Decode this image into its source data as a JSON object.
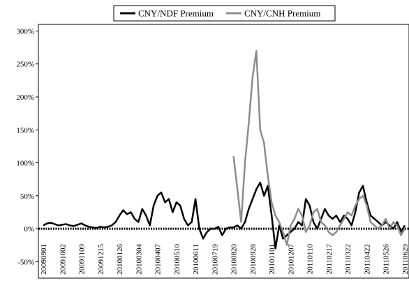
{
  "chart_data": {
    "type": "line",
    "categories": [
      "20090901",
      null,
      null,
      null,
      null,
      "20091002",
      null,
      null,
      null,
      null,
      "20091109",
      null,
      null,
      null,
      null,
      "20091215",
      null,
      null,
      null,
      null,
      "20100126",
      null,
      null,
      null,
      null,
      "20100304",
      null,
      null,
      null,
      null,
      "20100407",
      null,
      null,
      null,
      null,
      "20100510",
      null,
      null,
      null,
      null,
      "20100611",
      null,
      null,
      null,
      null,
      "20100719",
      null,
      null,
      null,
      null,
      "20100820",
      null,
      null,
      null,
      null,
      "20100928",
      null,
      null,
      null,
      null,
      "20101101",
      null,
      null,
      null,
      null,
      "20101207",
      null,
      null,
      null,
      null,
      "20110110",
      null,
      null,
      null,
      null,
      "20110217",
      null,
      null,
      null,
      null,
      "20110322",
      null,
      null,
      null,
      null,
      "20110422",
      null,
      null,
      null,
      null,
      "20110526",
      null,
      null,
      null,
      null,
      "20110629"
    ],
    "series": [
      {
        "name": "CNY/NDF Premium",
        "color": "#000000",
        "values": [
          5,
          8,
          9,
          7,
          5,
          6,
          7,
          5,
          4,
          6,
          8,
          5,
          3,
          2,
          1,
          3,
          2,
          3,
          5,
          10,
          20,
          28,
          22,
          25,
          15,
          10,
          30,
          20,
          5,
          35,
          50,
          55,
          40,
          45,
          25,
          40,
          35,
          15,
          5,
          10,
          45,
          0,
          -15,
          -5,
          0,
          0,
          3,
          -10,
          0,
          2,
          2,
          5,
          0,
          10,
          30,
          45,
          60,
          70,
          50,
          65,
          20,
          -30,
          5,
          -15,
          -10,
          -5,
          0,
          10,
          5,
          45,
          35,
          10,
          0,
          15,
          30,
          20,
          15,
          20,
          10,
          20,
          15,
          5,
          25,
          55,
          65,
          40,
          20,
          15,
          10,
          5,
          10,
          5,
          0,
          10,
          -5,
          5
        ]
      },
      {
        "name": "CNY/CNH Premium",
        "color": "#8c8c8c",
        "values": [
          null,
          null,
          null,
          null,
          null,
          null,
          null,
          null,
          null,
          null,
          null,
          null,
          null,
          null,
          null,
          null,
          null,
          null,
          null,
          null,
          null,
          null,
          null,
          null,
          null,
          null,
          null,
          null,
          null,
          null,
          null,
          null,
          null,
          null,
          null,
          null,
          null,
          null,
          null,
          null,
          null,
          null,
          null,
          null,
          null,
          null,
          null,
          null,
          null,
          null,
          110,
          60,
          10,
          100,
          160,
          230,
          270,
          150,
          130,
          80,
          40,
          20,
          10,
          -5,
          -25,
          5,
          15,
          30,
          20,
          -5,
          5,
          25,
          30,
          10,
          5,
          -5,
          -10,
          -5,
          5,
          15,
          25,
          20,
          35,
          45,
          50,
          35,
          10,
          5,
          0,
          5,
          15,
          0,
          10,
          5,
          -10,
          0
        ]
      }
    ],
    "ylim": [
      -75,
      310
    ],
    "yticks": [
      {
        "value": -50,
        "label": "-50%"
      },
      {
        "value": 0,
        "label": "0%"
      },
      {
        "value": 50,
        "label": "50%"
      },
      {
        "value": 100,
        "label": "100%"
      },
      {
        "value": 150,
        "label": "150%"
      },
      {
        "value": 200,
        "label": "200%"
      },
      {
        "value": 250,
        "label": "250%"
      },
      {
        "value": 300,
        "label": "300%"
      }
    ],
    "legend": "top"
  }
}
